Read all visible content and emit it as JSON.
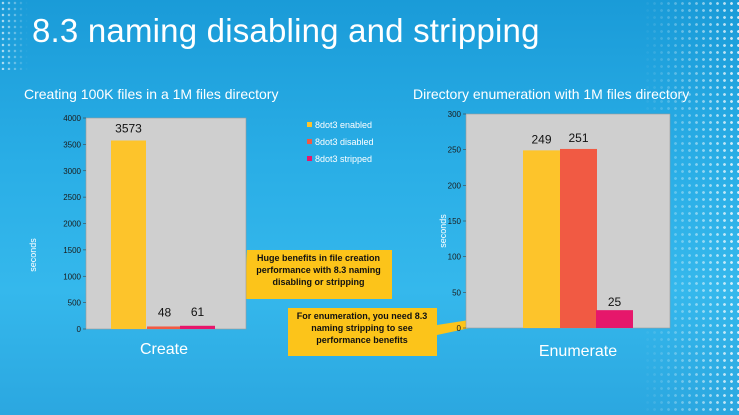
{
  "slide": {
    "title": "8.3 naming disabling and stripping",
    "left_chart_title": "Creating 100K files in a 1M files directory",
    "right_chart_title": "Directory enumeration with 1M files directory",
    "callout_create": "Huge benefits in file creation performance with 8.3 naming disabling or stripping",
    "callout_enumerate": "For enumeration, you need 8.3 naming stripping to see performance benefits"
  },
  "colors": {
    "background": "#2aaee6",
    "enabled": "#fdc42b",
    "disabled": "#f15a43",
    "stripped": "#e6176b",
    "plot_area": "#cfcfcf",
    "callout": "#fcc41a"
  },
  "chart_data": [
    {
      "type": "bar",
      "categories": [
        "Create"
      ],
      "series": [
        {
          "name": "8dot3 enabled",
          "values": [
            3573
          ]
        },
        {
          "name": "8dot3 disabled",
          "values": [
            48
          ]
        },
        {
          "name": "8dot3 stripped",
          "values": [
            61
          ]
        }
      ],
      "ylabel": "seconds",
      "ylim": [
        0,
        4000
      ],
      "yticks": [
        0,
        500,
        1000,
        1500,
        2000,
        2500,
        3000,
        3500,
        4000
      ],
      "legend": "right",
      "grid": false
    },
    {
      "type": "bar",
      "categories": [
        "Enumerate"
      ],
      "series": [
        {
          "name": "8dot3 enabled",
          "values": [
            249
          ]
        },
        {
          "name": "8dot3 disabled",
          "values": [
            251
          ]
        },
        {
          "name": "8dot3 stripped",
          "values": [
            25
          ]
        }
      ],
      "ylabel": "seconds",
      "ylim": [
        0,
        300
      ],
      "yticks": [
        0,
        50,
        100,
        150,
        200,
        250,
        300
      ],
      "legend": "none",
      "grid": false
    }
  ]
}
